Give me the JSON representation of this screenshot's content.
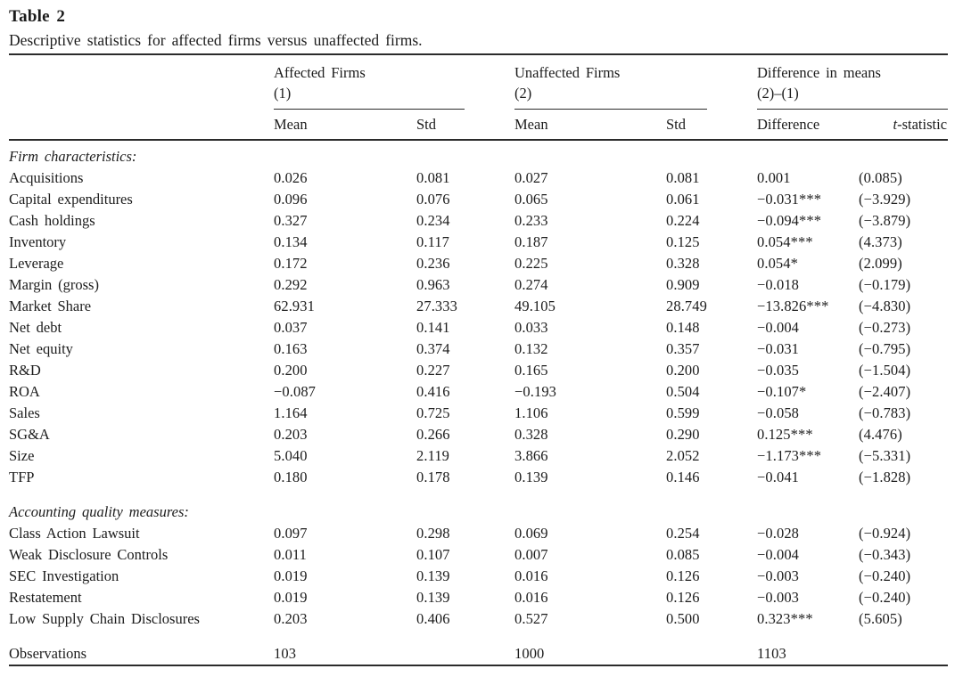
{
  "meta": {
    "title": "Table 2",
    "caption": "Descriptive statistics for affected firms versus unaffected firms."
  },
  "columns": {
    "group1": {
      "line1": "Affected Firms",
      "line2": "(1)",
      "sub1": "Mean",
      "sub2": "Std"
    },
    "group2": {
      "line1": "Unaffected Firms",
      "line2": "(2)",
      "sub1": "Mean",
      "sub2": "Std"
    },
    "group3": {
      "line1": "Difference in means",
      "line2": "(2)–(1)",
      "sub1": "Difference",
      "sub2_italic": "t",
      "sub2_rest": "-statistic"
    }
  },
  "chart_data": {
    "type": "table",
    "title": "Table 2. Descriptive statistics for affected firms versus unaffected firms.",
    "column_headers": [
      "",
      "Affected Firms (1) Mean",
      "Affected Firms (1) Std",
      "Unaffected Firms (2) Mean",
      "Unaffected Firms (2) Std",
      "Difference (2)-(1)",
      "t-statistic"
    ]
  },
  "sections": [
    {
      "header": "Firm characteristics:",
      "spacer_before": false,
      "rows": [
        {
          "label": "Acquisitions",
          "values": [
            "0.026",
            "0.081",
            "0.027",
            "0.081",
            "0.001",
            "(0.085)"
          ]
        },
        {
          "label": "Capital expenditures",
          "values": [
            "0.096",
            "0.076",
            "0.065",
            "0.061",
            "−0.031***",
            "(−3.929)"
          ]
        },
        {
          "label": "Cash holdings",
          "values": [
            "0.327",
            "0.234",
            "0.233",
            "0.224",
            "−0.094***",
            "(−3.879)"
          ]
        },
        {
          "label": "Inventory",
          "values": [
            "0.134",
            "0.117",
            "0.187",
            "0.125",
            "0.054***",
            "(4.373)"
          ]
        },
        {
          "label": "Leverage",
          "values": [
            "0.172",
            "0.236",
            "0.225",
            "0.328",
            "0.054*",
            "(2.099)"
          ]
        },
        {
          "label": "Margin (gross)",
          "values": [
            "0.292",
            "0.963",
            "0.274",
            "0.909",
            "−0.018",
            "(−0.179)"
          ]
        },
        {
          "label": "Market Share",
          "values": [
            "62.931",
            "27.333",
            "49.105",
            "28.749",
            "−13.826***",
            "(−4.830)"
          ]
        },
        {
          "label": "Net debt",
          "values": [
            "0.037",
            "0.141",
            "0.033",
            "0.148",
            "−0.004",
            "(−0.273)"
          ]
        },
        {
          "label": "Net equity",
          "values": [
            "0.163",
            "0.374",
            "0.132",
            "0.357",
            "−0.031",
            "(−0.795)"
          ]
        },
        {
          "label": "R&D",
          "values": [
            "0.200",
            "0.227",
            "0.165",
            "0.200",
            "−0.035",
            "(−1.504)"
          ]
        },
        {
          "label": "ROA",
          "values": [
            "−0.087",
            "0.416",
            "−0.193",
            "0.504",
            "−0.107*",
            "(−2.407)"
          ]
        },
        {
          "label": "Sales",
          "values": [
            "1.164",
            "0.725",
            "1.106",
            "0.599",
            "−0.058",
            "(−0.783)"
          ]
        },
        {
          "label": "SG&A",
          "values": [
            "0.203",
            "0.266",
            "0.328",
            "0.290",
            "0.125***",
            "(4.476)"
          ]
        },
        {
          "label": "Size",
          "values": [
            "5.040",
            "2.119",
            "3.866",
            "2.052",
            "−1.173***",
            "(−5.331)"
          ]
        },
        {
          "label": "TFP",
          "values": [
            "0.180",
            "0.178",
            "0.139",
            "0.146",
            "−0.041",
            "(−1.828)"
          ]
        }
      ]
    },
    {
      "header": "Accounting quality measures:",
      "spacer_before": true,
      "rows": [
        {
          "label": "Class Action Lawsuit",
          "values": [
            "0.097",
            "0.298",
            "0.069",
            "0.254",
            "−0.028",
            "(−0.924)"
          ]
        },
        {
          "label": "Weak Disclosure Controls",
          "values": [
            "0.011",
            "0.107",
            "0.007",
            "0.085",
            "−0.004",
            "(−0.343)"
          ]
        },
        {
          "label": "SEC Investigation",
          "values": [
            "0.019",
            "0.139",
            "0.016",
            "0.126",
            "−0.003",
            "(−0.240)"
          ]
        },
        {
          "label": "Restatement",
          "values": [
            "0.019",
            "0.139",
            "0.016",
            "0.126",
            "−0.003",
            "(−0.240)"
          ]
        },
        {
          "label": "Low Supply Chain Disclosures",
          "values": [
            "0.203",
            "0.406",
            "0.527",
            "0.500",
            "0.323***",
            "(5.605)"
          ]
        }
      ]
    }
  ],
  "footer": {
    "label": "Observations",
    "values": [
      "103",
      "",
      "1000",
      "",
      "1103",
      ""
    ]
  }
}
